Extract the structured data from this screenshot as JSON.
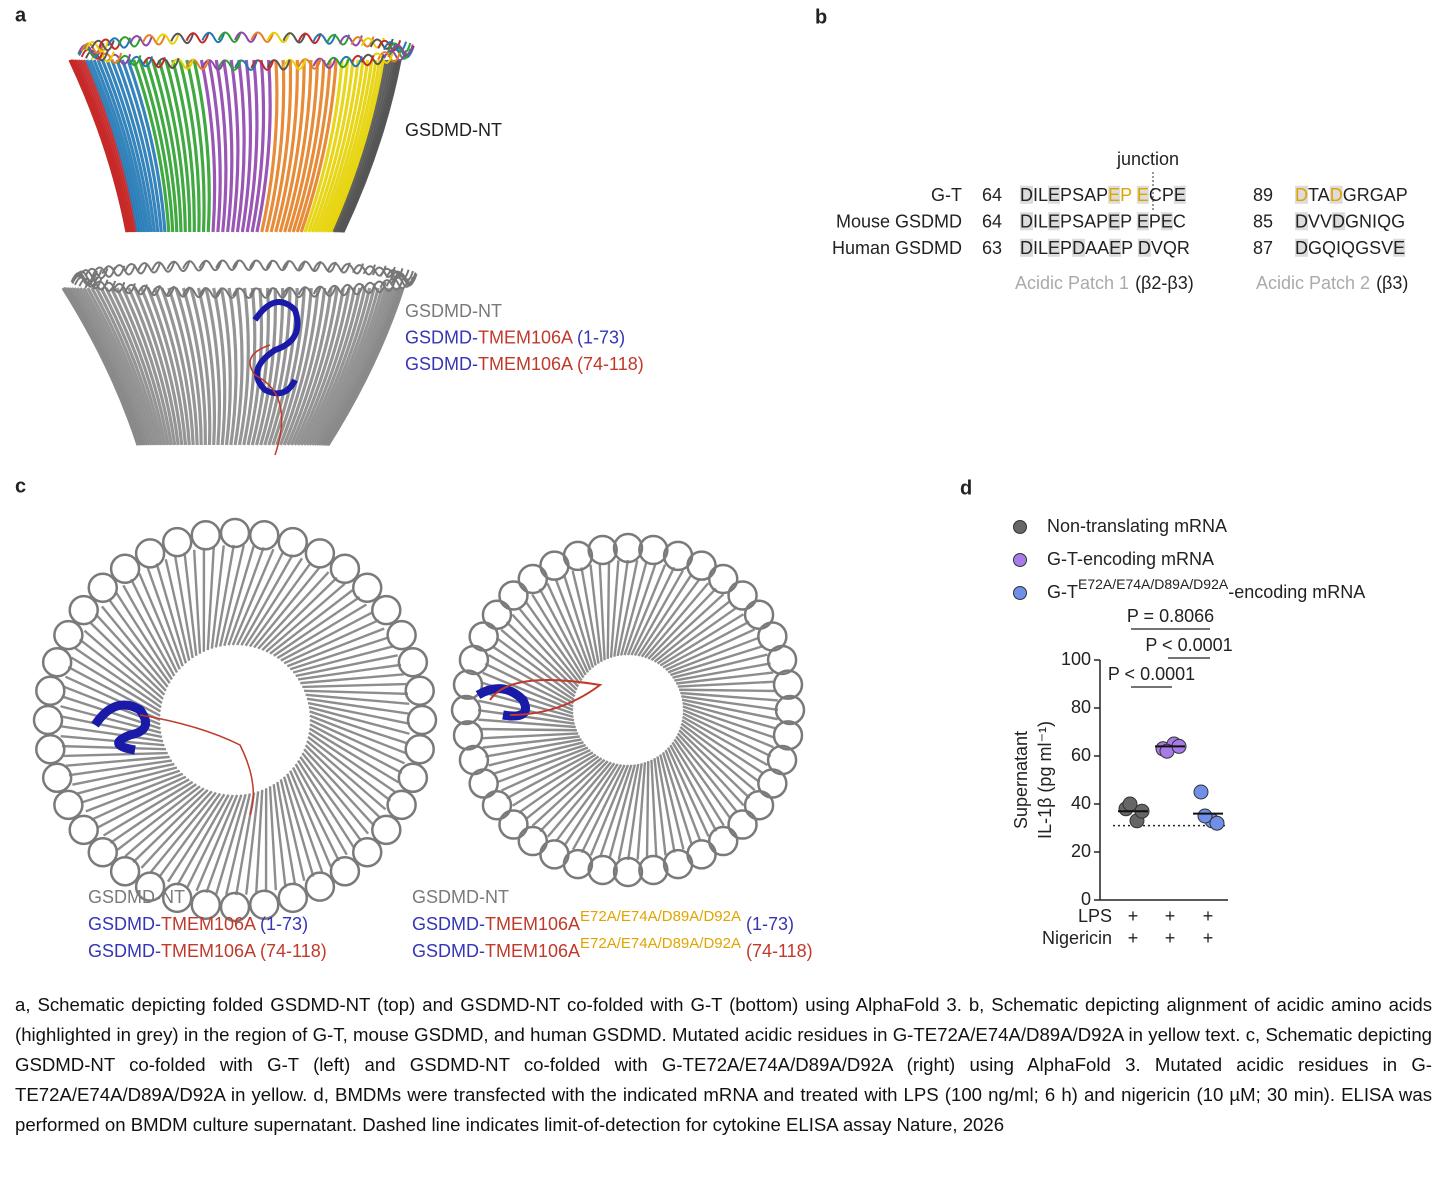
{
  "panels": {
    "a": {
      "label": "a",
      "top_label": "GSDMD-NT",
      "legend": [
        [
          {
            "text": "GSDMD-NT",
            "color": "#7a7a7a"
          }
        ],
        [
          {
            "text": "GSDMD-",
            "color": "#3535b5"
          },
          {
            "text": "TMEM106A",
            "color": "#c0392b"
          },
          {
            "text": " (1-73)",
            "color": "#3535b5"
          }
        ],
        [
          {
            "text": "GSDMD-",
            "color": "#3535b5"
          },
          {
            "text": "TMEM106A (74-118)",
            "color": "#c0392b"
          }
        ]
      ]
    },
    "b": {
      "label": "b",
      "junction": "junction",
      "rows": [
        {
          "name": "G-T",
          "seg1": {
            "start": 64,
            "seq": "DILEPSAPEP ECPE",
            "grey": [
              0,
              3,
              8,
              11,
              14
            ],
            "yellow": [
              8,
              9,
              11
            ]
          },
          "seg2": {
            "start": 89,
            "seq": "DTADGRGAP",
            "grey": [
              0,
              3
            ],
            "yellow": [
              0,
              3
            ]
          }
        },
        {
          "name": "Mouse GSDMD",
          "seg1": {
            "start": 64,
            "seq": "DILEPSAPEP EPEC",
            "grey": [
              0,
              3,
              8,
              11,
              13
            ],
            "yellow": []
          },
          "seg2": {
            "start": 85,
            "seq": "DVVDGNIQG",
            "grey": [
              0,
              3
            ],
            "yellow": []
          }
        },
        {
          "name": "Human GSDMD",
          "seg1": {
            "start": 63,
            "seq": "DILEPDAAEP DVQR",
            "grey": [
              0,
              3,
              5,
              8,
              11
            ],
            "yellow": []
          },
          "seg2": {
            "start": 87,
            "seq": "DGQIQGSVE",
            "grey": [
              0,
              8
            ],
            "yellow": []
          }
        }
      ],
      "patches": [
        {
          "name": "Acidic Patch 1",
          "region": "(β2-β3)"
        },
        {
          "name": "Acidic Patch 2",
          "region": "(β3)"
        }
      ]
    },
    "c": {
      "label": "c",
      "left_legend": [
        [
          {
            "text": "GSDMD-NT",
            "color": "#7a7a7a"
          }
        ],
        [
          {
            "text": "GSDMD-",
            "color": "#3535b5"
          },
          {
            "text": "TMEM106A",
            "color": "#c0392b"
          },
          {
            "text": " (1-73)",
            "color": "#3535b5"
          }
        ],
        [
          {
            "text": "GSDMD-",
            "color": "#3535b5"
          },
          {
            "text": "TMEM106A (74-118)",
            "color": "#c0392b"
          }
        ]
      ],
      "right_legend": [
        [
          {
            "text": "GSDMD-NT",
            "color": "#7a7a7a"
          }
        ],
        [
          {
            "text": "GSDMD-",
            "color": "#3535b5"
          },
          {
            "text": "TMEM106A",
            "color": "#c0392b"
          },
          {
            "text": "E72A/E74A/D89A/D92A",
            "color": "#e0a400",
            "sup": true
          },
          {
            "text": " (1-73)",
            "color": "#3535b5"
          }
        ],
        [
          {
            "text": "GSDMD-",
            "color": "#3535b5"
          },
          {
            "text": "TMEM106A",
            "color": "#c0392b"
          },
          {
            "text": "E72A/E74A/D89A/D92A",
            "color": "#e0a400",
            "sup": true
          },
          {
            "text": " (74-118)",
            "color": "#c0392b"
          }
        ]
      ]
    },
    "d": {
      "label": "d"
    }
  },
  "chart_data": {
    "type": "dot",
    "ylabel": [
      "Supernatant",
      "IL-1β (pg ml⁻¹)"
    ],
    "ylim": [
      0,
      100
    ],
    "yticks": [
      0,
      20,
      40,
      60,
      80,
      100
    ],
    "series": [
      {
        "name": [
          "Non-translating mRNA"
        ],
        "color": "#666666",
        "values": [
          38,
          33,
          40,
          37
        ],
        "mean": 37
      },
      {
        "name": [
          "G-T-encoding mRNA"
        ],
        "color": "#a77ce8",
        "values": [
          63,
          65,
          62,
          64
        ],
        "mean": 64
      },
      {
        "name": [
          "G-T",
          "E72A/E74A/D89A/D92A",
          "-encoding mRNA"
        ],
        "color": "#6f8fe8",
        "values": [
          45,
          33,
          35,
          32
        ],
        "mean": 36
      }
    ],
    "detection_limit": 31,
    "comparisons": [
      {
        "text": "P = 0.8066",
        "from": 0,
        "to": 2
      },
      {
        "text": "P < 0.0001",
        "from": 1,
        "to": 2
      },
      {
        "text": "P < 0.0001",
        "from": 0,
        "to": 1
      }
    ],
    "treatments": [
      {
        "name": "LPS",
        "values": [
          "+",
          "+",
          "+"
        ]
      },
      {
        "name": "Nigericin",
        "values": [
          "+",
          "+",
          "+"
        ]
      }
    ]
  },
  "caption": "a, Schematic depicting folded GSDMD-NT (top) and GSDMD-NT co-folded with G-T (bottom) using AlphaFold 3. b, Schematic depicting alignment of acidic amino acids (highlighted in grey) in the region of G-T, mouse GSDMD, and human GSDMD. Mutated acidic residues in G-TE72A/E74A/D89A/D92A in yellow text. c, Schematic depicting GSDMD-NT co-folded with G-T (left) and GSDMD-NT co-folded with G-TE72A/E74A/D89A/D92A (right) using AlphaFold 3. Mutated acidic residues in G-TE72A/E74A/D89A/D92A in yellow. d, BMDMs were transfected with the indicated mRNA and treated with LPS (100 ng/ml; 6 h) and nigericin (10 µM; 30 min). ELISA was performed on BMDM culture supernatant. Dashed line indicates limit-of-detection for cytokine ELISA assay Nature, 2026"
}
